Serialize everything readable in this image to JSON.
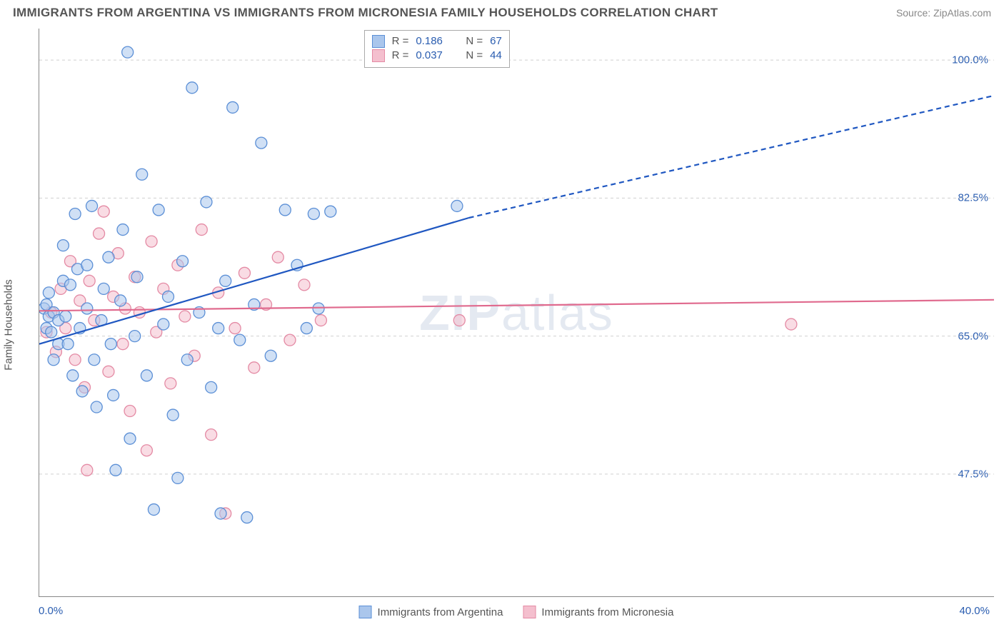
{
  "title": "IMMIGRANTS FROM ARGENTINA VS IMMIGRANTS FROM MICRONESIA FAMILY HOUSEHOLDS CORRELATION CHART",
  "source": "Source: ZipAtlas.com",
  "watermark_a": "ZIP",
  "watermark_b": "atlas",
  "ylabel": "Family Households",
  "chart": {
    "type": "scatter",
    "background_color": "#ffffff",
    "grid_color": "#d0d0d0",
    "axis_color": "#888888",
    "x": {
      "min": 0.0,
      "max": 40.0,
      "min_label": "0.0%",
      "max_label": "40.0%",
      "ticks_minor": [
        5,
        10,
        15,
        20,
        25,
        30,
        35
      ]
    },
    "y": {
      "min": 32.0,
      "max": 104.0,
      "gridlines": [
        47.5,
        65.0,
        82.5,
        100.0
      ],
      "grid_labels": [
        "47.5%",
        "65.0%",
        "82.5%",
        "100.0%"
      ]
    },
    "series": [
      {
        "key": "argentina",
        "name": "Immigrants from Argentina",
        "fill": "#aac6ec",
        "stroke": "#5b8fd6",
        "fill_opacity": 0.55,
        "marker_radius": 8,
        "R": "0.186",
        "N": "67",
        "trend": {
          "start": [
            0,
            64.0
          ],
          "solid_end": [
            18,
            80.0
          ],
          "end": [
            40,
            95.5
          ],
          "color": "#1f57c1",
          "width": 2.2
        },
        "points": [
          [
            0.2,
            68.5
          ],
          [
            0.3,
            69.0
          ],
          [
            0.4,
            67.5
          ],
          [
            0.3,
            66.0
          ],
          [
            0.5,
            65.5
          ],
          [
            0.6,
            68.0
          ],
          [
            0.4,
            70.5
          ],
          [
            0.8,
            64.0
          ],
          [
            0.8,
            67.0
          ],
          [
            1.0,
            72.0
          ],
          [
            1.0,
            76.5
          ],
          [
            1.1,
            67.5
          ],
          [
            1.2,
            64.0
          ],
          [
            1.3,
            71.5
          ],
          [
            1.4,
            60.0
          ],
          [
            1.5,
            80.5
          ],
          [
            1.6,
            73.5
          ],
          [
            1.7,
            66.0
          ],
          [
            1.8,
            58.0
          ],
          [
            2.0,
            68.5
          ],
          [
            2.0,
            74.0
          ],
          [
            2.2,
            81.5
          ],
          [
            2.3,
            62.0
          ],
          [
            2.4,
            56.0
          ],
          [
            2.6,
            67.0
          ],
          [
            2.7,
            71.0
          ],
          [
            2.9,
            75.0
          ],
          [
            3.0,
            64.0
          ],
          [
            3.1,
            57.5
          ],
          [
            3.2,
            48.0
          ],
          [
            3.4,
            69.5
          ],
          [
            3.5,
            78.5
          ],
          [
            3.7,
            101.0
          ],
          [
            3.8,
            52.0
          ],
          [
            4.0,
            65.0
          ],
          [
            4.1,
            72.5
          ],
          [
            4.3,
            85.5
          ],
          [
            4.5,
            60.0
          ],
          [
            4.8,
            43.0
          ],
          [
            5.0,
            81.0
          ],
          [
            5.2,
            66.5
          ],
          [
            5.4,
            70.0
          ],
          [
            5.6,
            55.0
          ],
          [
            5.8,
            47.0
          ],
          [
            6.0,
            74.5
          ],
          [
            6.2,
            62.0
          ],
          [
            6.4,
            96.5
          ],
          [
            6.7,
            68.0
          ],
          [
            7.0,
            82.0
          ],
          [
            7.2,
            58.5
          ],
          [
            7.5,
            66.0
          ],
          [
            7.6,
            42.5
          ],
          [
            7.8,
            72.0
          ],
          [
            8.1,
            94.0
          ],
          [
            8.4,
            64.5
          ],
          [
            8.7,
            42.0
          ],
          [
            9.0,
            69.0
          ],
          [
            9.3,
            89.5
          ],
          [
            9.7,
            62.5
          ],
          [
            10.3,
            81.0
          ],
          [
            10.8,
            74.0
          ],
          [
            11.2,
            66.0
          ],
          [
            11.5,
            80.5
          ],
          [
            11.7,
            68.5
          ],
          [
            12.2,
            80.8
          ],
          [
            17.5,
            81.5
          ],
          [
            0.6,
            62.0
          ]
        ]
      },
      {
        "key": "micronesia",
        "name": "Immigrants from Micronesia",
        "fill": "#f4bfce",
        "stroke": "#e48aa4",
        "fill_opacity": 0.55,
        "marker_radius": 8,
        "R": "0.037",
        "N": "44",
        "trend": {
          "start": [
            0,
            68.2
          ],
          "end": [
            40,
            69.6
          ],
          "color": "#e06a8e",
          "width": 2.2
        },
        "points": [
          [
            0.3,
            65.5
          ],
          [
            0.5,
            68.0
          ],
          [
            0.7,
            63.0
          ],
          [
            0.9,
            71.0
          ],
          [
            1.1,
            66.0
          ],
          [
            1.3,
            74.5
          ],
          [
            1.5,
            62.0
          ],
          [
            1.7,
            69.5
          ],
          [
            1.9,
            58.5
          ],
          [
            2.1,
            72.0
          ],
          [
            2.3,
            67.0
          ],
          [
            2.5,
            78.0
          ],
          [
            2.7,
            80.8
          ],
          [
            2.9,
            60.5
          ],
          [
            3.1,
            70.0
          ],
          [
            3.3,
            75.5
          ],
          [
            3.5,
            64.0
          ],
          [
            3.8,
            55.5
          ],
          [
            4.0,
            72.5
          ],
          [
            4.2,
            68.0
          ],
          [
            4.5,
            50.5
          ],
          [
            4.7,
            77.0
          ],
          [
            4.9,
            65.5
          ],
          [
            5.2,
            71.0
          ],
          [
            5.5,
            59.0
          ],
          [
            5.8,
            74.0
          ],
          [
            6.1,
            67.5
          ],
          [
            6.5,
            62.5
          ],
          [
            6.8,
            78.5
          ],
          [
            7.2,
            52.5
          ],
          [
            7.5,
            70.5
          ],
          [
            7.8,
            42.5
          ],
          [
            8.2,
            66.0
          ],
          [
            8.6,
            73.0
          ],
          [
            9.0,
            61.0
          ],
          [
            9.5,
            69.0
          ],
          [
            10.0,
            75.0
          ],
          [
            10.5,
            64.5
          ],
          [
            11.1,
            71.5
          ],
          [
            11.8,
            67.0
          ],
          [
            17.6,
            67.0
          ],
          [
            31.5,
            66.5
          ],
          [
            2.0,
            48.0
          ],
          [
            3.6,
            68.5
          ]
        ]
      }
    ]
  },
  "legend": {
    "top": {
      "R_prefix": "R  =",
      "N_prefix": "N  ="
    },
    "bottom": {
      "argentina": "Immigrants from Argentina",
      "micronesia": "Immigrants from Micronesia"
    }
  }
}
